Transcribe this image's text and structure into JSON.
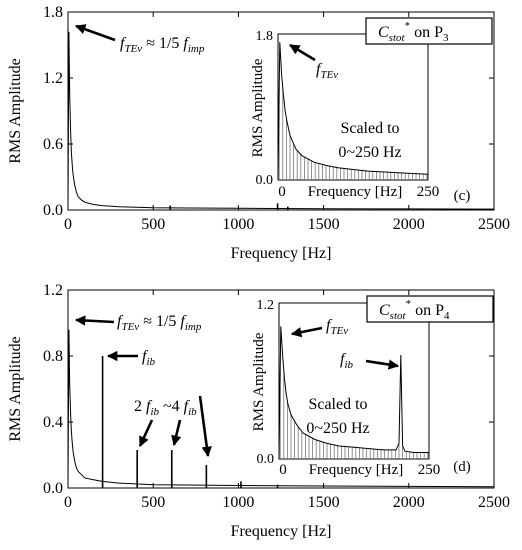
{
  "chart_data": [
    {
      "type": "line",
      "panel_label": "(c)",
      "xlabel": "Frequency [Hz]",
      "ylabel": "RMS Amplitude",
      "xlim": [
        0,
        2500
      ],
      "ylim": [
        0,
        1.8
      ],
      "xticks": [
        "0",
        "500",
        "1000",
        "1500",
        "2000",
        "2500"
      ],
      "yticks": [
        "0.0",
        "0.6",
        "1.2",
        "1.8"
      ],
      "grid": false,
      "series": [
        {
          "x": [
            0,
            5,
            10,
            15,
            20,
            25,
            30,
            40,
            50,
            60,
            80,
            100,
            150,
            200,
            300,
            400,
            500,
            700,
            1000,
            1500,
            2000,
            2500
          ],
          "values": [
            0.02,
            1.62,
            1.05,
            0.72,
            0.52,
            0.4,
            0.32,
            0.22,
            0.16,
            0.12,
            0.09,
            0.07,
            0.05,
            0.04,
            0.03,
            0.025,
            0.02,
            0.018,
            0.015,
            0.012,
            0.01,
            0.008
          ]
        }
      ],
      "peaks": [
        {
          "x": 600,
          "y": 0.04
        },
        {
          "x": 1230,
          "y": 0.06
        },
        {
          "x": 1290,
          "y": 0.03
        }
      ],
      "annotations": [
        {
          "text": "f",
          "sub": "TEv",
          "tail": " ≈ 1/5 ",
          "tail_f": "f",
          "tail_sub": "imp",
          "x": 20,
          "y": 1.65
        },
        {
          "label": "C",
          "label_sub": "stot",
          "label_sup": "*",
          "label_tail": " on P",
          "label_tail_sub": "3"
        }
      ],
      "inset": {
        "xlim": [
          0,
          250
        ],
        "ylim": [
          0,
          1.8
        ],
        "xtick_left": "0",
        "xtick_right": "250",
        "xlabel": "Frequency [Hz]",
        "ylabel": "RMS Amplitude",
        "yticks": [
          "0.0",
          "1.8"
        ],
        "note_line1": "Scaled to",
        "note_line2": "0~250 Hz",
        "annotation": {
          "text": "f",
          "sub": "TEv"
        },
        "x": [
          0,
          3,
          6,
          9,
          12,
          15,
          20,
          30,
          40,
          60,
          80,
          100,
          125,
          150,
          175,
          200,
          225,
          250
        ],
        "values": [
          0.02,
          1.7,
          1.3,
          1.05,
          0.85,
          0.72,
          0.55,
          0.38,
          0.3,
          0.22,
          0.18,
          0.15,
          0.13,
          0.11,
          0.1,
          0.09,
          0.08,
          0.07
        ]
      }
    },
    {
      "type": "line",
      "panel_label": "(d)",
      "xlabel": "Frequency [Hz]",
      "ylabel": "RMS Amplitude",
      "xlim": [
        0,
        2500
      ],
      "ylim": [
        0,
        1.2
      ],
      "xticks": [
        "0",
        "500",
        "1000",
        "1500",
        "2000",
        "2500"
      ],
      "yticks": [
        "0.0",
        "0.4",
        "0.8",
        "1.2"
      ],
      "grid": false,
      "series": [
        {
          "x": [
            0,
            5,
            10,
            15,
            20,
            25,
            30,
            40,
            50,
            60,
            80,
            100,
            150,
            200,
            300,
            400,
            500,
            700,
            1000,
            1500,
            2000,
            2500
          ],
          "values": [
            0.02,
            0.96,
            0.62,
            0.45,
            0.34,
            0.27,
            0.22,
            0.16,
            0.12,
            0.1,
            0.08,
            0.06,
            0.05,
            0.04,
            0.03,
            0.025,
            0.02,
            0.018,
            0.015,
            0.012,
            0.01,
            0.008
          ]
        }
      ],
      "peaks": [
        {
          "x": 203,
          "y": 0.8
        },
        {
          "x": 406,
          "y": 0.23
        },
        {
          "x": 609,
          "y": 0.23
        },
        {
          "x": 812,
          "y": 0.14
        },
        {
          "x": 1015,
          "y": 0.04
        },
        {
          "x": 1230,
          "y": 0.02
        }
      ],
      "annotations": [
        {
          "text": "f",
          "sub": "TEv",
          "tail": " ≈ 1/5 ",
          "tail_f": "f",
          "tail_sub": "imp",
          "x": 20,
          "y": 0.96
        },
        {
          "text": "f",
          "sub": "ib",
          "x": 203,
          "y": 0.8
        },
        {
          "text": "2 ",
          "f": "f",
          "sub": "ib",
          "tail": " ~4 ",
          "tail_f": "f",
          "tail_sub": "ib"
        },
        {
          "label": "C",
          "label_sub": "stot",
          "label_sup": "*",
          "label_tail": " on P",
          "label_tail_sub": "4"
        }
      ],
      "inset": {
        "xlim": [
          0,
          250
        ],
        "ylim": [
          0,
          1.2
        ],
        "xtick_left": "0",
        "xtick_right": "250",
        "xlabel": "Frequency [Hz]",
        "ylabel": "RMS Amplitude",
        "yticks": [
          "0.0",
          "1.2"
        ],
        "note_line1": "Scaled to",
        "note_line2": "0~250 Hz",
        "annotation": {
          "text": "f",
          "sub": "TEv"
        },
        "annotation2": {
          "text": "f",
          "sub": "ib"
        },
        "x": [
          0,
          3,
          6,
          9,
          12,
          15,
          20,
          30,
          40,
          60,
          80,
          100,
          125,
          150,
          175,
          195,
          200,
          203,
          206,
          210,
          225,
          250
        ],
        "values": [
          0.02,
          1.02,
          0.8,
          0.62,
          0.5,
          0.42,
          0.34,
          0.26,
          0.2,
          0.15,
          0.12,
          0.1,
          0.09,
          0.08,
          0.07,
          0.07,
          0.12,
          0.8,
          0.1,
          0.06,
          0.05,
          0.05
        ]
      }
    }
  ]
}
